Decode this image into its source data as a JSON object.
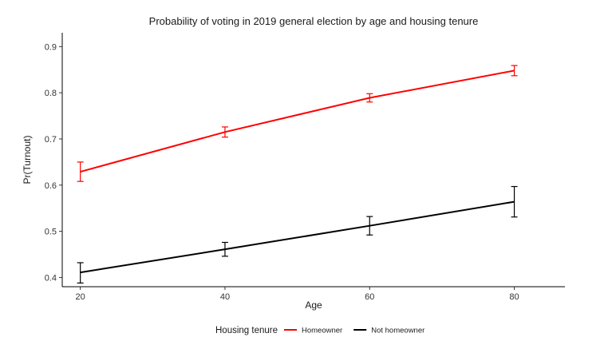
{
  "chart_data": {
    "type": "line",
    "title": "Probability of voting in 2019 general election by age and housing tenure",
    "xlabel": "Age",
    "ylabel": "Pr(Turnout)",
    "x": [
      20,
      40,
      60,
      80
    ],
    "x_ticks": [
      20,
      40,
      60,
      80
    ],
    "x_tick_labels": [
      "20",
      "40",
      "60",
      "80"
    ],
    "xlim": [
      17.5,
      87
    ],
    "y_ticks": [
      0.4,
      0.5,
      0.6,
      0.7,
      0.8,
      0.9
    ],
    "y_tick_labels": [
      "0.4",
      "0.5",
      "0.6",
      "0.7",
      "0.8",
      "0.9"
    ],
    "ylim": [
      0.38,
      0.93
    ],
    "grid": false,
    "legend": {
      "title": "Housing tenure",
      "position": "bottom"
    },
    "series": [
      {
        "name": "Homeowner",
        "color": "#ff0000",
        "values": [
          0.629,
          0.715,
          0.789,
          0.848
        ],
        "lower": [
          0.608,
          0.704,
          0.78,
          0.837
        ],
        "upper": [
          0.65,
          0.726,
          0.798,
          0.859
        ]
      },
      {
        "name": "Not homeowner",
        "color": "#000000",
        "values": [
          0.411,
          0.461,
          0.512,
          0.564
        ],
        "lower": [
          0.388,
          0.446,
          0.492,
          0.531
        ],
        "upper": [
          0.432,
          0.476,
          0.532,
          0.597
        ]
      }
    ]
  }
}
